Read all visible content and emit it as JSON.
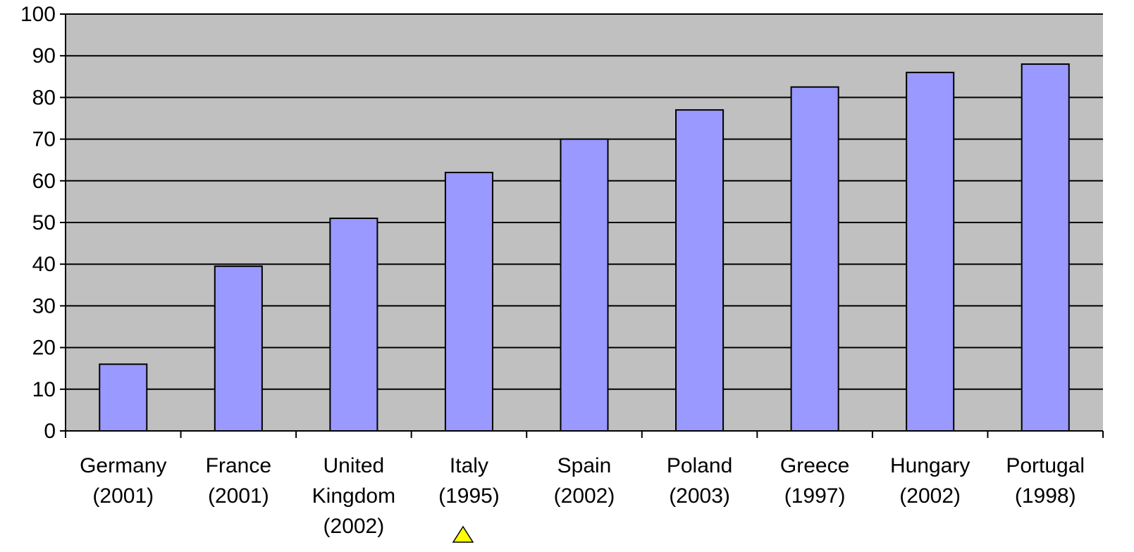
{
  "chart_data": {
    "type": "bar",
    "categories": [
      [
        "Germany",
        "(2001)"
      ],
      [
        "France",
        "(2001)"
      ],
      [
        "United",
        "Kingdom",
        "(2002)"
      ],
      [
        "Italy",
        "(1995)"
      ],
      [
        "Spain",
        "(2002)"
      ],
      [
        "Poland",
        "(2003)"
      ],
      [
        "Greece",
        "(1997)"
      ],
      [
        "Hungary",
        "(2002)"
      ],
      [
        "Portugal",
        "(1998)"
      ]
    ],
    "values": [
      16,
      39.5,
      51,
      62,
      70,
      77,
      82.5,
      86,
      88
    ],
    "ylim": [
      0,
      100
    ],
    "yticks": [
      0,
      10,
      20,
      30,
      40,
      50,
      60,
      70,
      80,
      90,
      100
    ],
    "grid": true,
    "legend": "none",
    "colors": {
      "bar_fill": "#9999ff",
      "plot_background": "#c0c0c0",
      "gridline": "#000000",
      "marker": "#ffff00"
    }
  }
}
